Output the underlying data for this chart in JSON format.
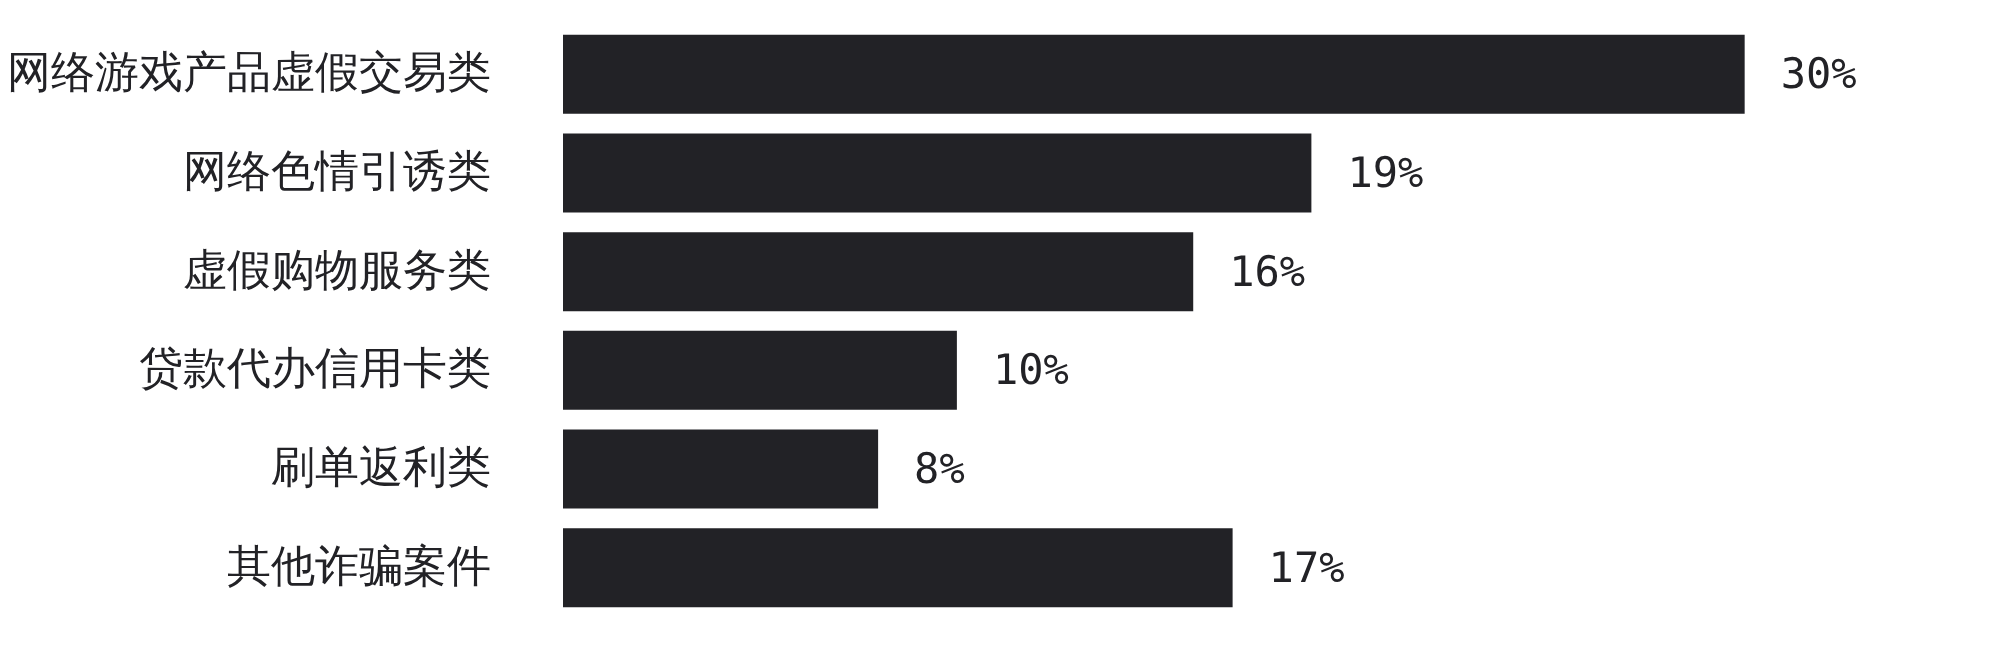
{
  "chart_data": {
    "type": "bar",
    "orientation": "horizontal",
    "categories": [
      "网络游戏产品虚假交易类",
      "网络色情引诱类",
      "虚假购物服务类",
      "贷款代办信用卡类",
      "刷单返利类",
      "其他诈骗案件"
    ],
    "values": [
      30,
      19,
      16,
      10,
      8,
      17
    ],
    "value_labels": [
      "30%",
      "19%",
      "16%",
      "10%",
      "8%",
      "17%"
    ],
    "color": "#222226",
    "tick_labels": "y",
    "grid": false
  }
}
